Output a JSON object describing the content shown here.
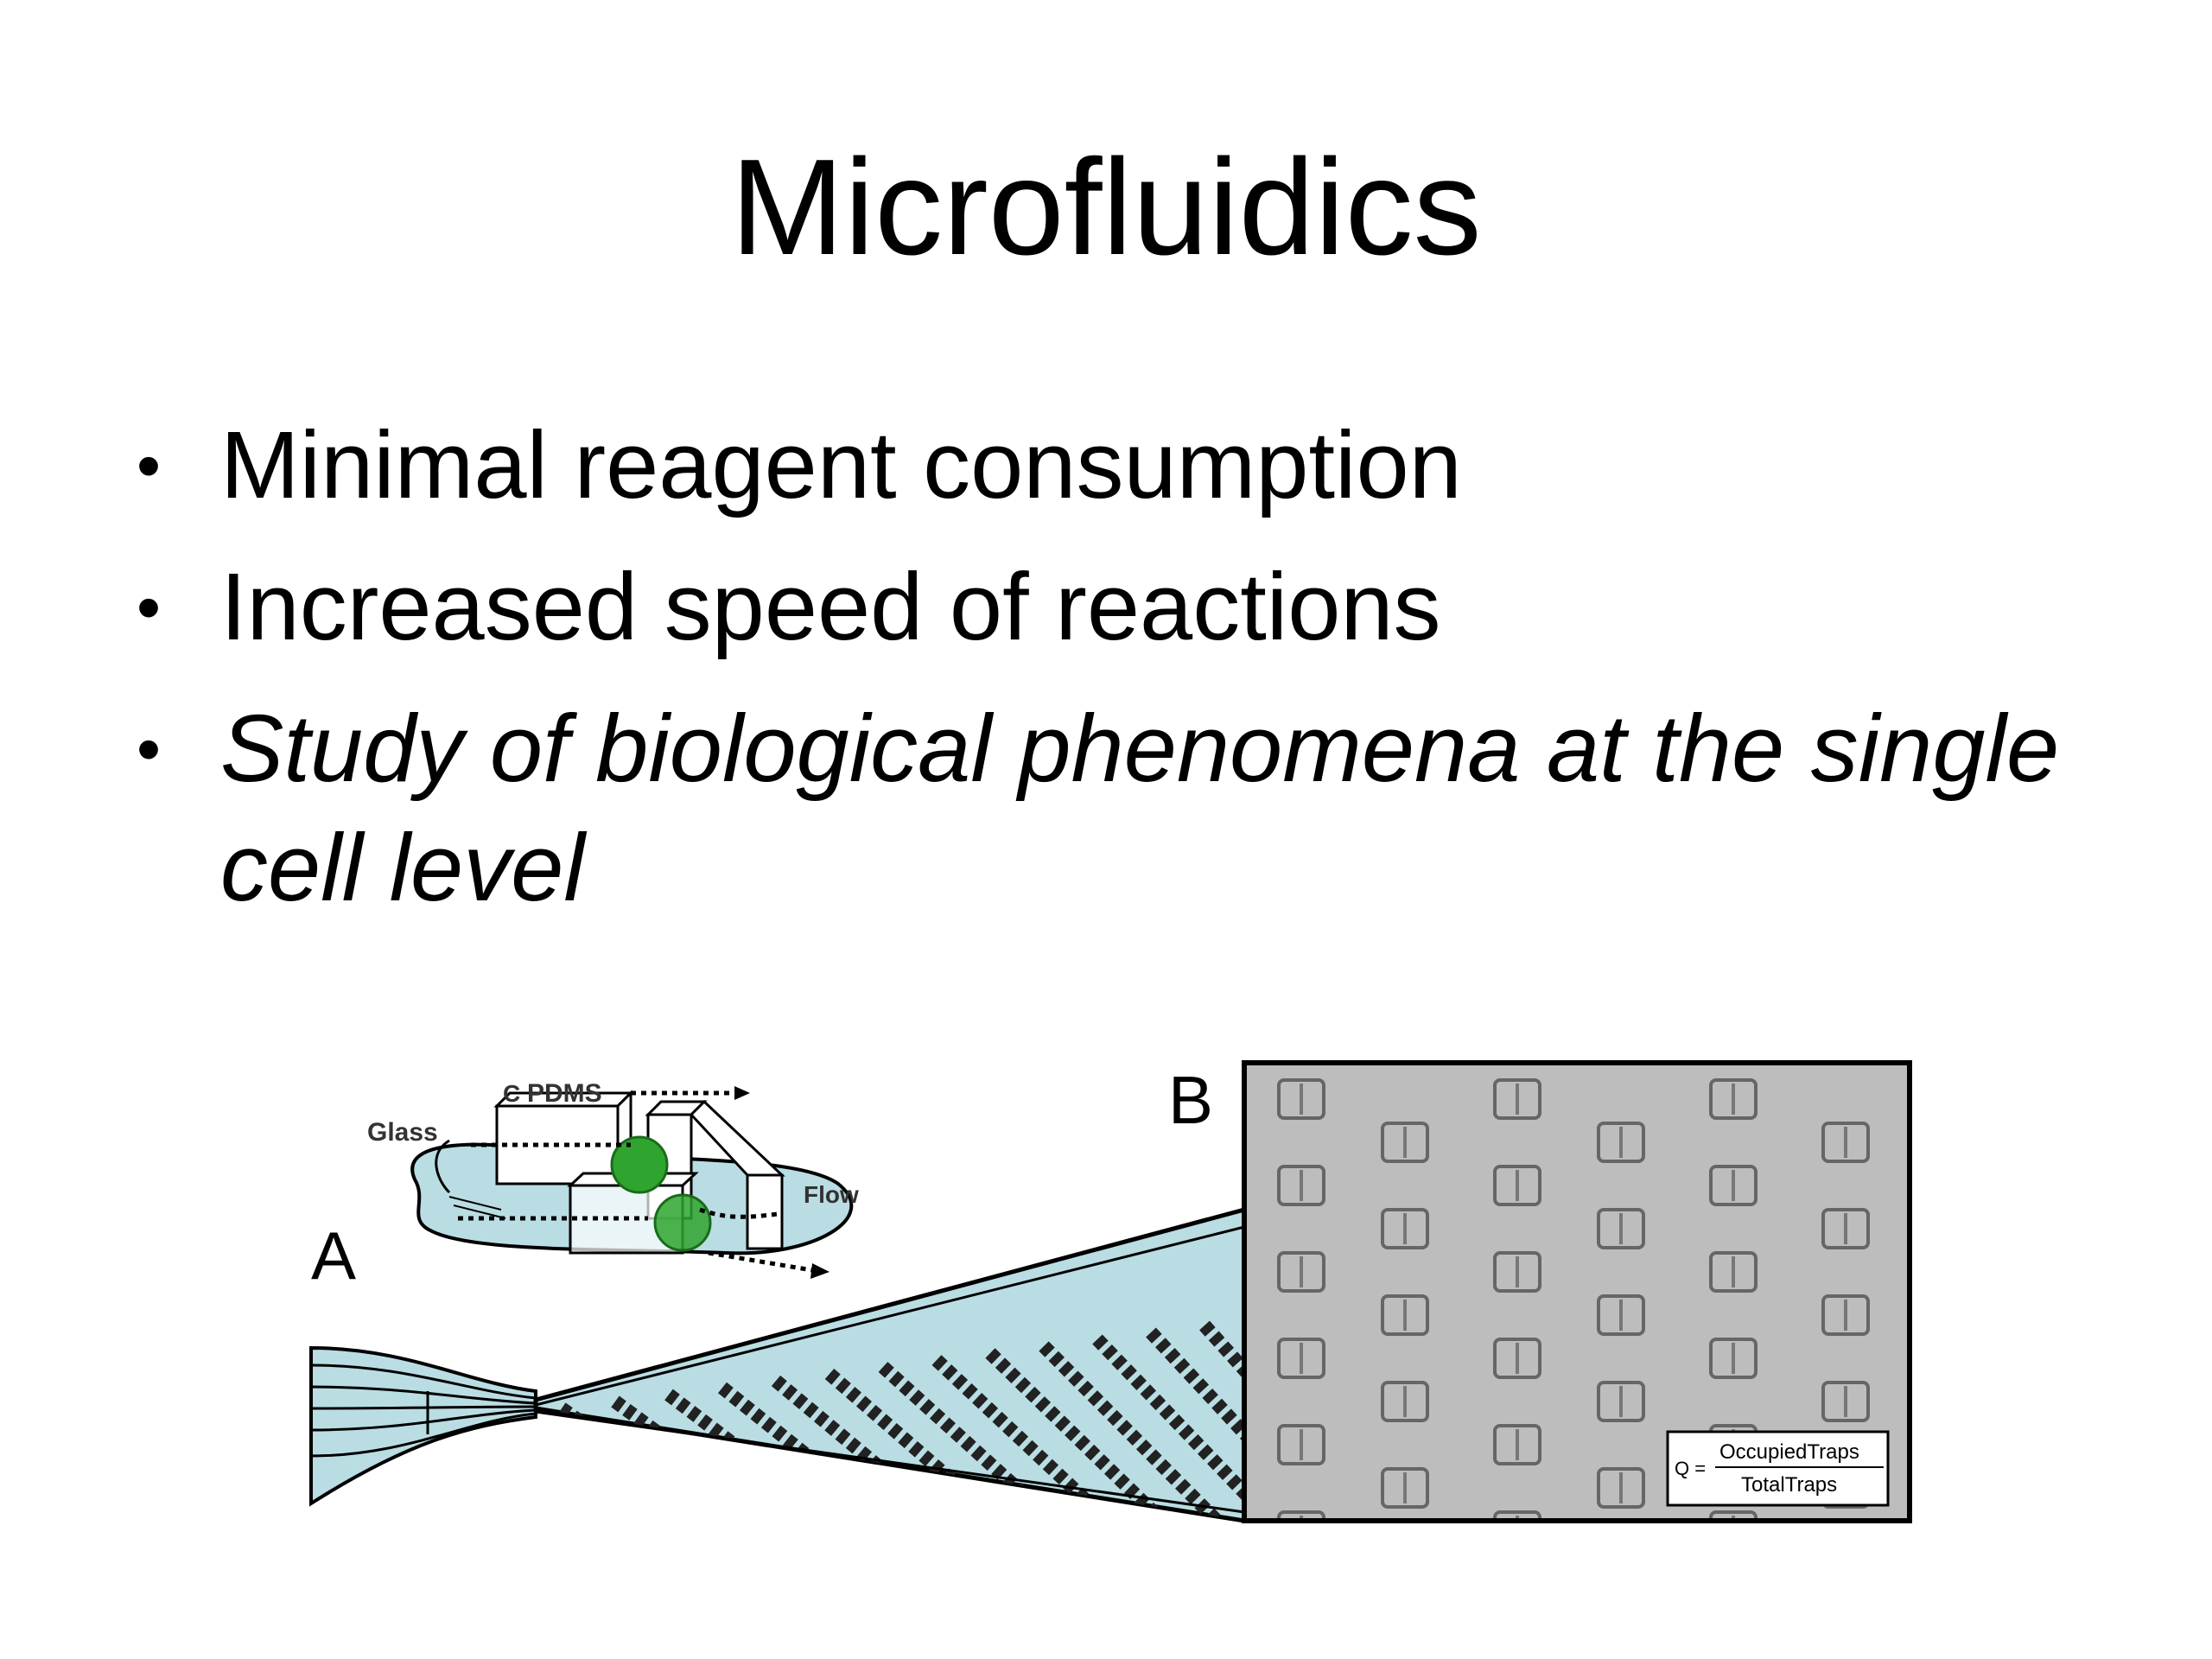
{
  "slide": {
    "title": "Microfluidics",
    "bullets": [
      {
        "text": "Minimal reagent consumption",
        "italic": false
      },
      {
        "text": "Increased speed of reactions",
        "italic": false
      },
      {
        "text": "Study of biological phenomena at the single cell level",
        "italic": true
      }
    ]
  },
  "figure": {
    "panel_a_label": "A",
    "panel_b_label": "B",
    "inset_labels": {
      "glass": "Glass",
      "pdms": "PDMS",
      "c": "C",
      "flow": "Flow"
    },
    "formula": {
      "lhs": "Q =",
      "numerator": "OccupiedTraps",
      "denominator": "TotalTraps"
    },
    "colors": {
      "channel_fill": "#b9dde3",
      "micrograph_bg": "#bdbdbd",
      "bead_green": "#2fa52f"
    }
  }
}
